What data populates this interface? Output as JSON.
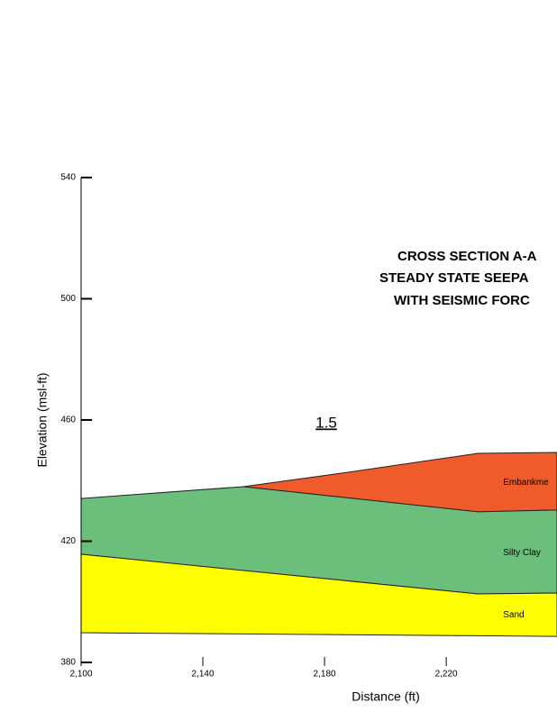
{
  "chart_data": {
    "type": "section",
    "title": [
      "CROSS SECTION A-A",
      "STEADY STATE SEEPA",
      "WITH SEISMIC FORC"
    ],
    "annotation": "1.5",
    "x_label": "Distance (ft)",
    "y_label": "Elevation (msl-ft)",
    "xlim": [
      2100,
      2256.4
    ],
    "ylim": [
      380,
      540
    ],
    "xticks": [
      {
        "value": 2100,
        "label": "2,100"
      },
      {
        "value": 2140,
        "label": "2,140"
      },
      {
        "value": 2180,
        "label": "2,180"
      },
      {
        "value": 2220,
        "label": "2,220"
      }
    ],
    "yticks": [
      380,
      420,
      460,
      500,
      540
    ],
    "layers": [
      {
        "name": "Embankme",
        "color": "#ef5b2b",
        "x": [
          2153.3,
          2185.9,
          2230.4,
          2256.4
        ],
        "top": [
          438.0,
          442.5,
          449.0,
          449.3
        ],
        "bottom": [
          438.0,
          434.5,
          429.7,
          430.3
        ]
      },
      {
        "name": "Silty Clay",
        "color": "#6cbf7a",
        "x": [
          2100,
          2153.3,
          2185.9,
          2230.4,
          2256.4
        ],
        "top": [
          434.1,
          438.0,
          434.5,
          429.7,
          430.3
        ],
        "bottom": [
          415.7,
          410.3,
          407.1,
          402.6,
          402.9
        ]
      },
      {
        "name": "Sand",
        "color": "#ffff00",
        "x": [
          2100,
          2230.4,
          2256.4
        ],
        "top": [
          415.7,
          402.6,
          402.9
        ],
        "bottom": [
          389.8,
          388.8,
          388.6
        ]
      }
    ]
  }
}
